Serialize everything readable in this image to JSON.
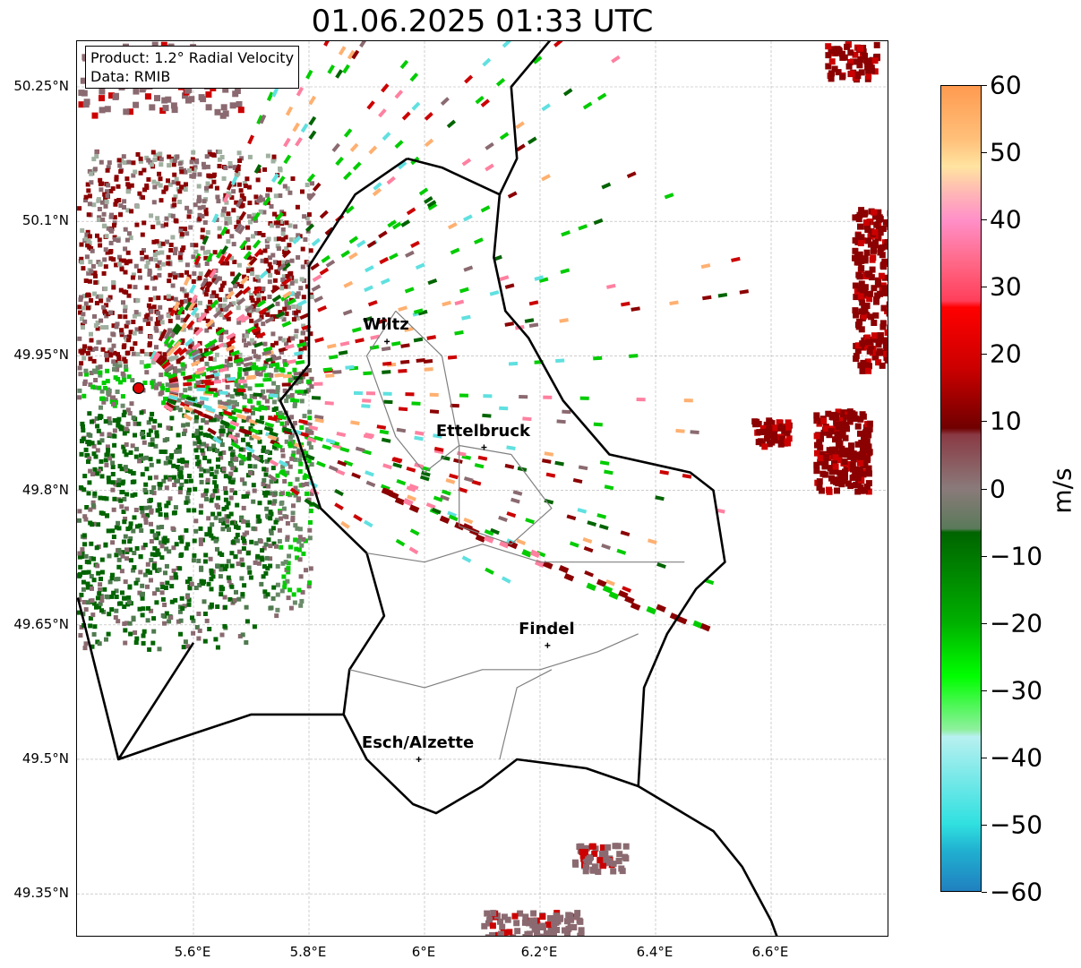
{
  "title": "01.06.2025 01:33 UTC",
  "info": {
    "product": "Product: 1.2° Radial Velocity",
    "data_source": "Data: RMIB"
  },
  "latitude_labels": [
    "50.25°N",
    "50.1°N",
    "49.95°N",
    "49.8°N",
    "49.65°N",
    "49.5°N",
    "49.35°N"
  ],
  "latitude_values": [
    50.25,
    50.1,
    49.95,
    49.8,
    49.65,
    49.5,
    49.35
  ],
  "longitude_labels": [
    "5.6°E",
    "5.8°E",
    "6°E",
    "6.2°E",
    "6.4°E",
    "6.6°E"
  ],
  "longitude_values": [
    5.6,
    5.8,
    6.0,
    6.2,
    6.4,
    6.6
  ],
  "cities": [
    {
      "name": "Wiltz",
      "lon": 5.935,
      "lat": 49.966
    },
    {
      "name": "Ettelbruck",
      "lon": 6.103,
      "lat": 49.848
    },
    {
      "name": "Findel",
      "lon": 6.213,
      "lat": 49.627
    },
    {
      "name": "Esch/Alzette",
      "lon": 5.99,
      "lat": 49.5
    }
  ],
  "colorbar": {
    "unit": "m/s",
    "ticks": [
      "60",
      "50",
      "40",
      "30",
      "20",
      "10",
      "0",
      "−10",
      "−20",
      "−30",
      "−40",
      "−50",
      "−60"
    ],
    "tick_values": [
      60,
      50,
      40,
      30,
      20,
      10,
      0,
      -10,
      -20,
      -30,
      -40,
      -50,
      -60
    ],
    "min": -60,
    "max": 60,
    "stops": [
      {
        "v": 60,
        "c": "#ff9a50"
      },
      {
        "v": 52,
        "c": "#ffc07a"
      },
      {
        "v": 48,
        "c": "#ffe4a0"
      },
      {
        "v": 44,
        "c": "#ffb6b6"
      },
      {
        "v": 40,
        "c": "#ff8fc8"
      },
      {
        "v": 34,
        "c": "#ff6a8a"
      },
      {
        "v": 28,
        "c": "#ff3f5a"
      },
      {
        "v": 27,
        "c": "#ff0000"
      },
      {
        "v": 18,
        "c": "#cc0000"
      },
      {
        "v": 9,
        "c": "#700000"
      },
      {
        "v": 8,
        "c": "#8a3a44"
      },
      {
        "v": 0,
        "c": "#8a7a7a"
      },
      {
        "v": -6,
        "c": "#5a7a5a"
      },
      {
        "v": -6.5,
        "c": "#006400"
      },
      {
        "v": -20,
        "c": "#00b000"
      },
      {
        "v": -28,
        "c": "#00ff00"
      },
      {
        "v": -36,
        "c": "#90f0a0"
      },
      {
        "v": -37,
        "c": "#b8f0f0"
      },
      {
        "v": -50,
        "c": "#30e0e0"
      },
      {
        "v": -54,
        "c": "#20b0d0"
      },
      {
        "v": -60,
        "c": "#2080c0"
      }
    ]
  },
  "radar_site": {
    "lon": 5.505,
    "lat": 49.914
  },
  "colors": {
    "grid": "#b0b0b0",
    "border": "#000000",
    "canton": "#808080",
    "inbound_dark": "#006400",
    "inbound": "#00cc00",
    "outbound_dark": "#8b0000",
    "outbound": "#cc0000",
    "near_zero": "#8a6a70",
    "fold_cyan": "#60e0e0",
    "fold_orange": "#ffb070",
    "fold_pink": "#ff80a0"
  }
}
